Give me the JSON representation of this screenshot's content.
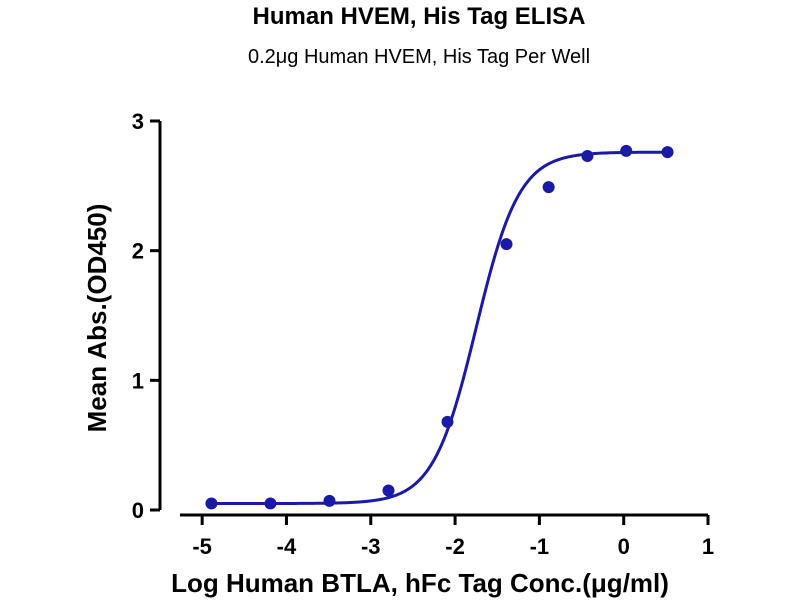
{
  "chart_data": {
    "type": "scatter",
    "title": "Human HVEM, His Tag ELISA",
    "subtitle": "0.2μg Human HVEM, His Tag Per Well",
    "xlabel": "Log Human BTLA, hFc Tag Conc.(μg/ml)",
    "ylabel": "Mean Abs.(OD450)",
    "xlim": [
      -5.5,
      1
    ],
    "ylim": [
      0,
      3
    ],
    "x_ticks": [
      -5,
      -4,
      -3,
      -2,
      -1,
      0,
      1
    ],
    "x_tick_labels": [
      "-5",
      "-4",
      "-3",
      "-2",
      "-1",
      "0",
      "1"
    ],
    "y_ticks": [
      0,
      1,
      2,
      3
    ],
    "y_tick_labels": [
      "0",
      "1",
      "2",
      "3"
    ],
    "grid": false,
    "series": [
      {
        "x": [
          -4.89,
          -4.19,
          -3.49,
          -2.79,
          -2.09,
          -1.39,
          -0.89,
          -0.43,
          0.03,
          0.52
        ],
        "y": [
          0.05,
          0.05,
          0.07,
          0.15,
          0.68,
          2.05,
          2.49,
          2.73,
          2.77,
          2.76
        ],
        "fit": {
          "model": "4PL",
          "bottom": 0.05,
          "top": 2.76,
          "logEC50": -1.75,
          "hill": 1.7,
          "x_range": [
            -4.89,
            0.52
          ]
        }
      }
    ],
    "colors": {
      "series": "#1a1aa6",
      "axis": "#000000"
    }
  }
}
